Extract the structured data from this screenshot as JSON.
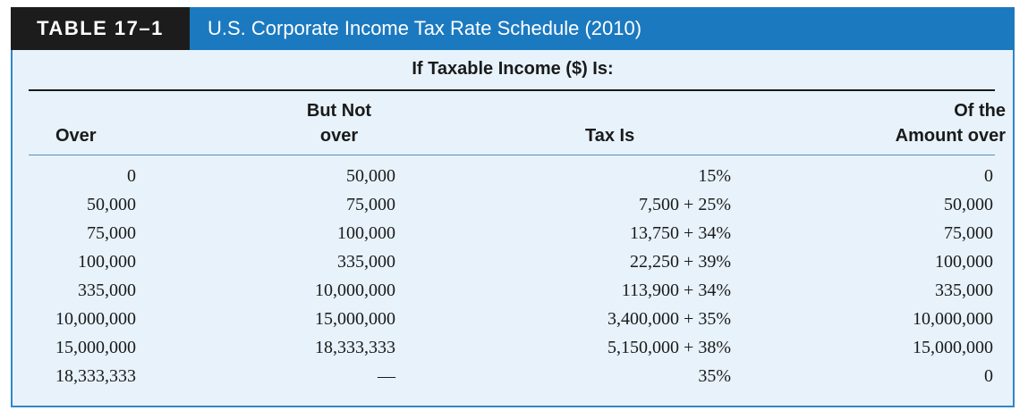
{
  "table": {
    "label": "TABLE 17–1",
    "title": "U.S. Corporate Income Tax Rate Schedule (2010)",
    "group_header": "If Taxable Income ($) Is:",
    "columns": {
      "over": "Over",
      "but_not_over_line1": "But Not",
      "but_not_over_line2": "over",
      "tax_is": "Tax Is",
      "of_the_amount_line1": "Of the",
      "of_the_amount_line2": "Amount over"
    },
    "rows": [
      {
        "over": "0",
        "but_not_over": "50,000",
        "tax_is": "15%",
        "amount_over": "0"
      },
      {
        "over": "50,000",
        "but_not_over": "75,000",
        "tax_is": "7,500 + 25%",
        "amount_over": "50,000"
      },
      {
        "over": "75,000",
        "but_not_over": "100,000",
        "tax_is": "13,750 + 34%",
        "amount_over": "75,000"
      },
      {
        "over": "100,000",
        "but_not_over": "335,000",
        "tax_is": "22,250 + 39%",
        "amount_over": "100,000"
      },
      {
        "over": "335,000",
        "but_not_over": "10,000,000",
        "tax_is": "113,900 + 34%",
        "amount_over": "335,000"
      },
      {
        "over": "10,000,000",
        "but_not_over": "15,000,000",
        "tax_is": "3,400,000 + 35%",
        "amount_over": "10,000,000"
      },
      {
        "over": "15,000,000",
        "but_not_over": "18,333,333",
        "tax_is": "5,150,000 + 38%",
        "amount_over": "15,000,000"
      },
      {
        "over": "18,333,333",
        "but_not_over": "—",
        "tax_is": "35%",
        "amount_over": "0"
      }
    ]
  },
  "colors": {
    "header_bar": "#1b79c0",
    "label_bg": "#1c1c1c",
    "table_bg": "#e7f2fb",
    "border": "#2f86c9"
  }
}
